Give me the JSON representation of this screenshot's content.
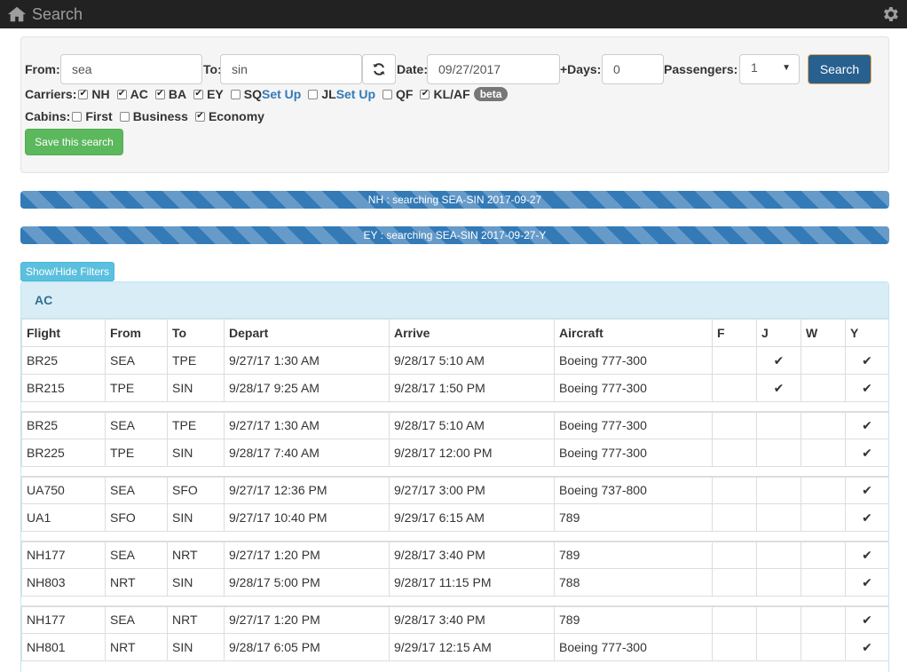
{
  "navbar": {
    "title": "Search"
  },
  "form": {
    "from_label": "From:",
    "from_value": "sea",
    "to_label": "To:",
    "to_value": "sin",
    "date_label": "Date:",
    "date_value": "09/27/2017",
    "days_label": "+Days:",
    "days_value": "0",
    "passengers_label": "Passengers:",
    "passengers_value": "1",
    "search_label": "Search",
    "carriers_label": "Carriers:",
    "carriers": [
      {
        "code": "NH",
        "checked": true
      },
      {
        "code": "AC",
        "checked": true
      },
      {
        "code": "BA",
        "checked": true
      },
      {
        "code": "EY",
        "checked": true
      },
      {
        "code": "SQ",
        "checked": false,
        "setup": "Set Up"
      },
      {
        "code": "JL",
        "checked": false,
        "setup": "Set Up"
      },
      {
        "code": "QF",
        "checked": false
      },
      {
        "code": "KL/AF",
        "checked": true,
        "badge": "beta"
      }
    ],
    "cabins_label": "Cabins:",
    "cabins": [
      {
        "name": "First",
        "checked": false
      },
      {
        "name": "Business",
        "checked": false
      },
      {
        "name": "Economy",
        "checked": true
      }
    ],
    "save_label": "Save this search"
  },
  "progress": [
    {
      "text": "NH : searching SEA-SIN 2017-09-27"
    },
    {
      "text": "EY : searching SEA-SIN 2017-09-27-Y"
    }
  ],
  "filters_label": "Show/Hide Filters",
  "results": {
    "carrier": "AC",
    "columns": [
      "Flight",
      "From",
      "To",
      "Depart",
      "Arrive",
      "Aircraft",
      "F",
      "J",
      "W",
      "Y"
    ],
    "groups": [
      [
        {
          "flight": "BR25",
          "from": "SEA",
          "to": "TPE",
          "depart": "9/27/17 1:30 AM",
          "arrive": "9/28/17 5:10 AM",
          "aircraft": "Boeing 777-300",
          "F": false,
          "J": true,
          "W": false,
          "Y": true
        },
        {
          "flight": "BR215",
          "from": "TPE",
          "to": "SIN",
          "depart": "9/28/17 9:25 AM",
          "arrive": "9/28/17 1:50 PM",
          "aircraft": "Boeing 777-300",
          "F": false,
          "J": true,
          "W": false,
          "Y": true
        }
      ],
      [
        {
          "flight": "BR25",
          "from": "SEA",
          "to": "TPE",
          "depart": "9/27/17 1:30 AM",
          "arrive": "9/28/17 5:10 AM",
          "aircraft": "Boeing 777-300",
          "F": false,
          "J": false,
          "W": false,
          "Y": true
        },
        {
          "flight": "BR225",
          "from": "TPE",
          "to": "SIN",
          "depart": "9/28/17 7:40 AM",
          "arrive": "9/28/17 12:00 PM",
          "aircraft": "Boeing 777-300",
          "F": false,
          "J": false,
          "W": false,
          "Y": true
        }
      ],
      [
        {
          "flight": "UA750",
          "from": "SEA",
          "to": "SFO",
          "depart": "9/27/17 12:36 PM",
          "arrive": "9/27/17 3:00 PM",
          "aircraft": "Boeing 737-800",
          "F": false,
          "J": false,
          "W": false,
          "Y": true
        },
        {
          "flight": "UA1",
          "from": "SFO",
          "to": "SIN",
          "depart": "9/27/17 10:40 PM",
          "arrive": "9/29/17 6:15 AM",
          "aircraft": "789",
          "F": false,
          "J": false,
          "W": false,
          "Y": true
        }
      ],
      [
        {
          "flight": "NH177",
          "from": "SEA",
          "to": "NRT",
          "depart": "9/27/17 1:20 PM",
          "arrive": "9/28/17 3:40 PM",
          "aircraft": "789",
          "F": false,
          "J": false,
          "W": false,
          "Y": true
        },
        {
          "flight": "NH803",
          "from": "NRT",
          "to": "SIN",
          "depart": "9/28/17 5:00 PM",
          "arrive": "9/28/17 11:15 PM",
          "aircraft": "788",
          "F": false,
          "J": false,
          "W": false,
          "Y": true
        }
      ],
      [
        {
          "flight": "NH177",
          "from": "SEA",
          "to": "NRT",
          "depart": "9/27/17 1:20 PM",
          "arrive": "9/28/17 3:40 PM",
          "aircraft": "789",
          "F": false,
          "J": false,
          "W": false,
          "Y": true
        },
        {
          "flight": "NH801",
          "from": "NRT",
          "to": "SIN",
          "depart": "9/28/17 6:05 PM",
          "arrive": "9/29/17 12:15 AM",
          "aircraft": "Boeing 777-300",
          "F": false,
          "J": false,
          "W": false,
          "Y": true
        }
      ]
    ]
  }
}
